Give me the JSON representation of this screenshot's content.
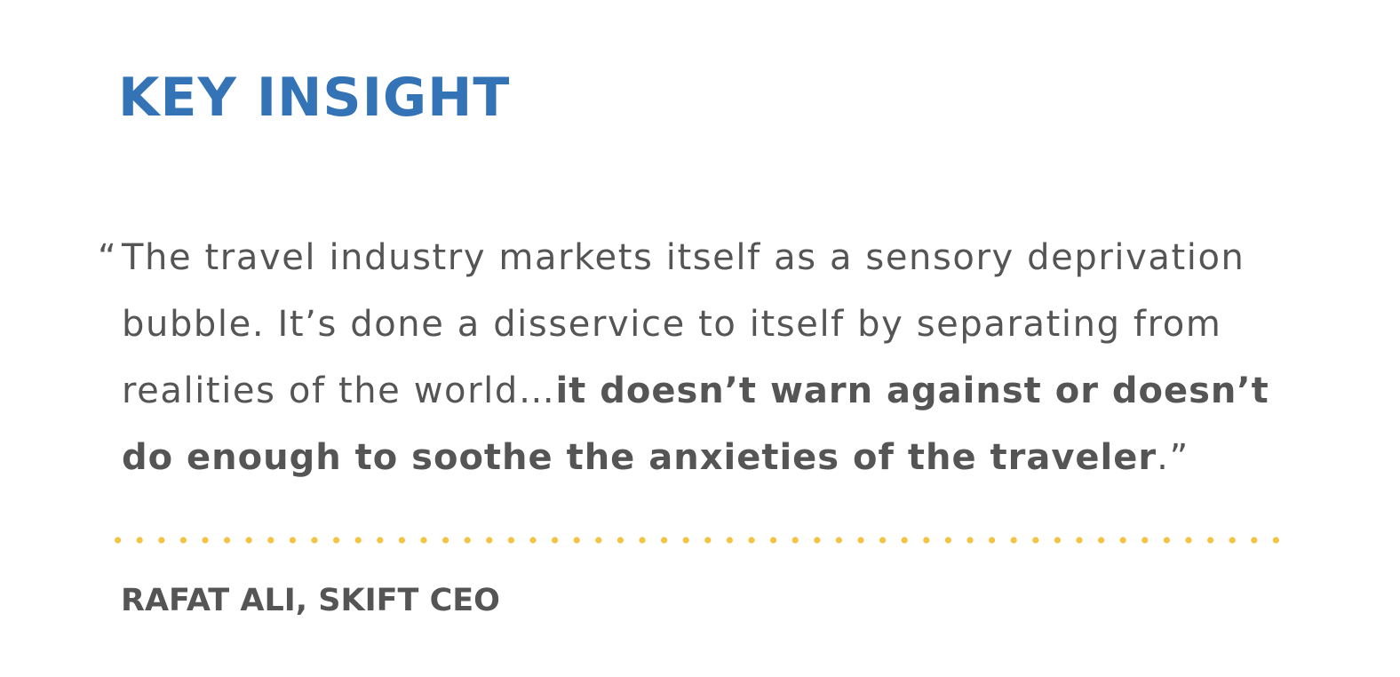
{
  "colors": {
    "accent": "#3474b6",
    "text": "#555555",
    "divider_dots": "#f3c343"
  },
  "heading": "KEY INSIGHT",
  "quote": {
    "open_mark": "“",
    "plain_text": "The travel industry markets itself as a sensory deprivation bubble. It’s done a disservice to itself by separating from realities of the world…",
    "emphasis_text": "it doesn’t warn against or doesn’t do enough to soothe the anxieties of the traveler",
    "closing": ".”"
  },
  "attribution": "RAFAT ALI, SKIFT CEO"
}
